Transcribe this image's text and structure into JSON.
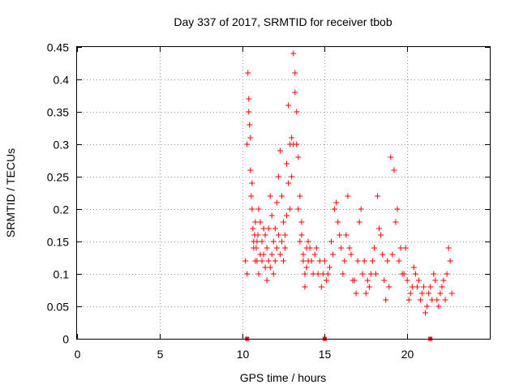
{
  "chart_data": {
    "type": "scatter",
    "title": "Day 337 of 2017, SRMTID for receiver tbob",
    "xlabel": "GPS time / hours",
    "ylabel": "SRMTID / TECUs",
    "xlim": [
      0,
      25
    ],
    "ylim": [
      0,
      0.45
    ],
    "x_ticks": [
      0,
      5,
      10,
      15,
      20
    ],
    "y_ticks": [
      0,
      0.05,
      0.1,
      0.15,
      0.2,
      0.25,
      0.3,
      0.35,
      0.4,
      0.45
    ],
    "grid": true,
    "legend": "none",
    "marker": "plus",
    "color": "#ff0000",
    "axis_markers_x": [
      10.3,
      15.0,
      21.4
    ],
    "series": [
      {
        "x": [
          10.2,
          10.3,
          10.35,
          10.4,
          10.45,
          10.5,
          10.55,
          10.6,
          10.65,
          10.7,
          10.75,
          10.8,
          10.85,
          10.9,
          10.95,
          11.0,
          11.1,
          11.2,
          11.3,
          11.4,
          11.5,
          11.6,
          11.7,
          11.8,
          11.9,
          12.0,
          12.1,
          12.2,
          12.3,
          12.4,
          12.5,
          12.6,
          12.7,
          12.8,
          12.9,
          13.0,
          13.1,
          13.2,
          13.3,
          13.4,
          13.5,
          13.6,
          13.7,
          13.8,
          13.9,
          14.0,
          14.2,
          14.4,
          14.6,
          14.8,
          15.0,
          15.2,
          15.4,
          15.6,
          15.8,
          16.0,
          16.2,
          16.4,
          16.6,
          16.8,
          17.0,
          17.2,
          17.4,
          17.6,
          17.8,
          18.0,
          18.2,
          18.4,
          18.6,
          18.8,
          19.0,
          19.2,
          19.4,
          19.6,
          19.8,
          20.0,
          20.2,
          20.4,
          20.6,
          20.8,
          21.0,
          21.2,
          21.4,
          21.6,
          21.8,
          22.0,
          22.2,
          22.4,
          22.6
        ],
        "y": [
          0.12,
          0.3,
          0.41,
          0.37,
          0.33,
          0.26,
          0.22,
          0.2,
          0.17,
          0.15,
          0.16,
          0.18,
          0.14,
          0.12,
          0.16,
          0.2,
          0.18,
          0.15,
          0.13,
          0.11,
          0.14,
          0.17,
          0.22,
          0.19,
          0.15,
          0.12,
          0.14,
          0.25,
          0.29,
          0.22,
          0.18,
          0.16,
          0.27,
          0.36,
          0.3,
          0.25,
          0.44,
          0.41,
          0.35,
          0.28,
          0.22,
          0.16,
          0.12,
          0.1,
          0.14,
          0.15,
          0.12,
          0.13,
          0.1,
          0.08,
          0.12,
          0.1,
          0.15,
          0.2,
          0.18,
          0.14,
          0.12,
          0.22,
          0.13,
          0.09,
          0.12,
          0.2,
          0.12,
          0.09,
          0.1,
          0.14,
          0.22,
          0.16,
          0.09,
          0.12,
          0.28,
          0.26,
          0.2,
          0.14,
          0.1,
          0.09,
          0.07,
          0.11,
          0.08,
          0.06,
          0.08,
          0.05,
          0.08,
          0.1,
          0.06,
          0.07,
          0.09,
          0.1,
          0.12
        ]
      },
      {
        "x": [
          10.3,
          10.4,
          10.5,
          10.6,
          10.7,
          10.8,
          10.9,
          11.0,
          11.1,
          11.2,
          11.3,
          11.4,
          11.5,
          11.6,
          11.7,
          11.8,
          11.9,
          12.0,
          12.1,
          12.2,
          12.3,
          12.4,
          12.5,
          12.6,
          12.7,
          12.8,
          12.9,
          13.0,
          13.1,
          13.2,
          13.3,
          13.4,
          13.5,
          13.6,
          13.7,
          13.8,
          13.9,
          14.0,
          14.1,
          14.3,
          14.5,
          14.7,
          14.9,
          15.1,
          15.3,
          15.5,
          15.7,
          15.9,
          16.1,
          16.3,
          16.5,
          16.7,
          16.9,
          17.1,
          17.3,
          17.5,
          17.7,
          17.9,
          18.1,
          18.3,
          18.5,
          18.7,
          18.9,
          19.1,
          19.3,
          19.5,
          19.7,
          19.9,
          20.1,
          20.3,
          20.5,
          20.7,
          20.9,
          21.1,
          21.3,
          21.5,
          21.7,
          21.9,
          22.1,
          22.3,
          22.5,
          22.7
        ],
        "y": [
          0.1,
          0.35,
          0.31,
          0.24,
          0.14,
          0.12,
          0.15,
          0.1,
          0.13,
          0.12,
          0.17,
          0.16,
          0.09,
          0.12,
          0.11,
          0.13,
          0.1,
          0.17,
          0.21,
          0.16,
          0.13,
          0.15,
          0.12,
          0.14,
          0.19,
          0.24,
          0.2,
          0.31,
          0.3,
          0.38,
          0.3,
          0.2,
          0.15,
          0.18,
          0.13,
          0.08,
          0.11,
          0.12,
          0.14,
          0.1,
          0.14,
          0.12,
          0.1,
          0.09,
          0.11,
          0.13,
          0.21,
          0.16,
          0.1,
          0.16,
          0.14,
          0.09,
          0.07,
          0.18,
          0.1,
          0.07,
          0.08,
          0.12,
          0.1,
          0.17,
          0.13,
          0.06,
          0.08,
          0.13,
          0.18,
          0.12,
          0.1,
          0.14,
          0.06,
          0.08,
          0.1,
          0.09,
          0.07,
          0.04,
          0.07,
          0.06,
          0.09,
          0.05,
          0.08,
          0.06,
          0.14,
          0.07
        ]
      }
    ]
  }
}
